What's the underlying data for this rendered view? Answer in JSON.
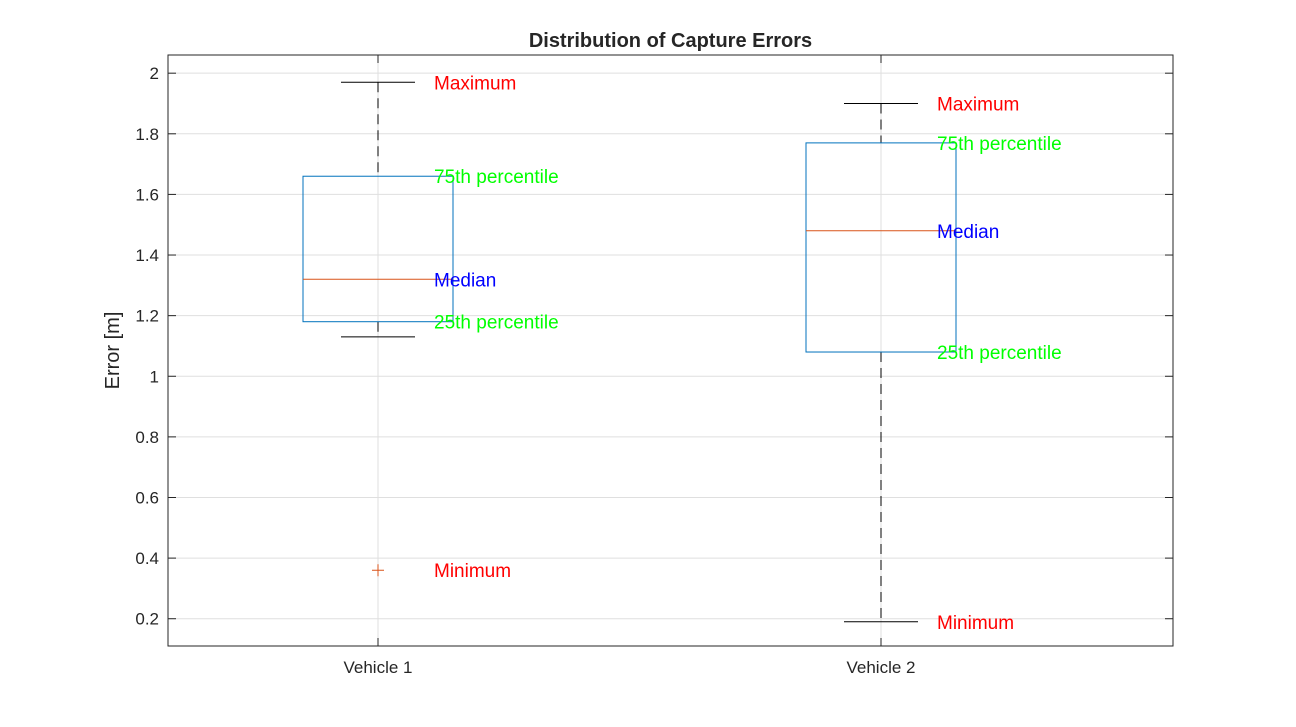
{
  "chart_data": {
    "type": "box",
    "title": "Distribution of Capture Errors",
    "xlabel": "",
    "ylabel": "Error [m]",
    "ylim": [
      0.11,
      2.06
    ],
    "yticks": [
      0.2,
      0.4,
      0.6,
      0.8,
      1,
      1.2,
      1.4,
      1.6,
      1.8,
      2
    ],
    "ytick_labels": [
      "0.2",
      "0.4",
      "0.6",
      "0.8",
      "1",
      "1.2",
      "1.4",
      "1.6",
      "1.8",
      "2"
    ],
    "grid": true,
    "categories": [
      "Vehicle 1",
      "Vehicle 2"
    ],
    "boxes": [
      {
        "category": "Vehicle 1",
        "lower_whisker": 1.13,
        "q1": 1.18,
        "median": 1.32,
        "q3": 1.66,
        "upper_whisker": 1.97,
        "outliers": [
          0.36
        ]
      },
      {
        "category": "Vehicle 2",
        "lower_whisker": 0.19,
        "q1": 1.08,
        "median": 1.48,
        "q3": 1.77,
        "upper_whisker": 1.9,
        "outliers": []
      }
    ],
    "annotations": [
      {
        "text": "Maximum",
        "x": "Vehicle 1",
        "y": 1.97,
        "color": "#ff0000"
      },
      {
        "text": "75th percentile",
        "x": "Vehicle 1",
        "y": 1.66,
        "color": "#00ff00"
      },
      {
        "text": "Median",
        "x": "Vehicle 1",
        "y": 1.32,
        "color": "#0000ff"
      },
      {
        "text": "25th percentile",
        "x": "Vehicle 1",
        "y": 1.18,
        "color": "#00ff00"
      },
      {
        "text": "Minimum",
        "x": "Vehicle 1",
        "y": 0.36,
        "color": "#ff0000"
      },
      {
        "text": "Maximum",
        "x": "Vehicle 2",
        "y": 1.9,
        "color": "#ff0000"
      },
      {
        "text": "75th percentile",
        "x": "Vehicle 2",
        "y": 1.77,
        "color": "#00ff00"
      },
      {
        "text": "Median",
        "x": "Vehicle 2",
        "y": 1.48,
        "color": "#0000ff"
      },
      {
        "text": "25th percentile",
        "x": "Vehicle 2",
        "y": 1.08,
        "color": "#00ff00"
      },
      {
        "text": "Minimum",
        "x": "Vehicle 2",
        "y": 0.19,
        "color": "#ff0000"
      }
    ],
    "colors": {
      "box": "#0072bd",
      "median": "#d95319",
      "whisker": "#000000",
      "outlier": "#d95319",
      "grid": "#dfdfdf",
      "axis": "#262626"
    }
  }
}
